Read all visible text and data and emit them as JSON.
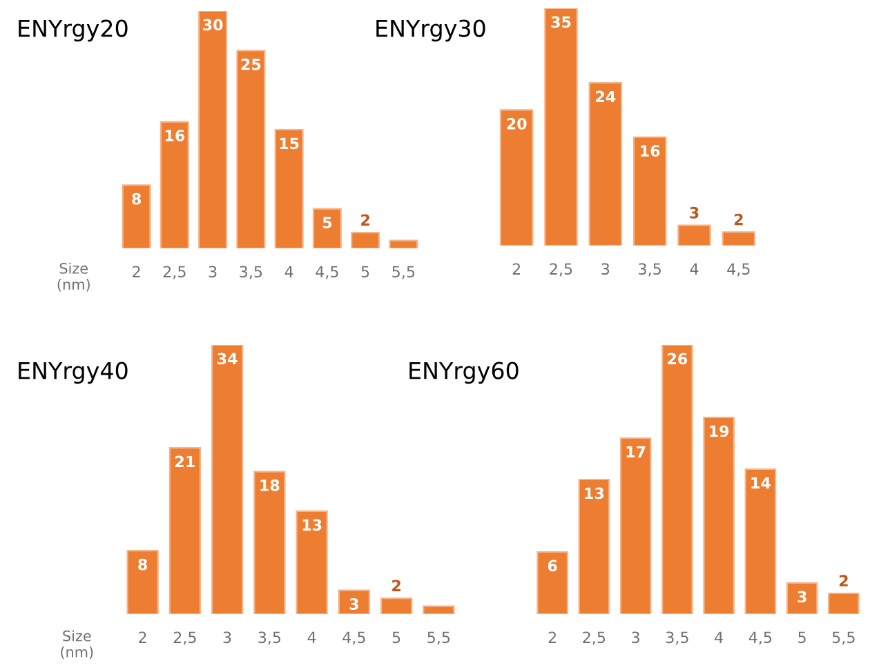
{
  "chart_data": [
    {
      "type": "bar",
      "title": "ENYrgy20",
      "xlabel": "Size\n(nm)",
      "categories": [
        "2",
        "2,5",
        "3",
        "3,5",
        "4",
        "4,5",
        "5",
        "5,5"
      ],
      "color": "#ed7d31",
      "values": [
        8,
        16,
        30,
        25,
        15,
        5,
        2,
        1
      ],
      "value_labels": [
        "8",
        "16",
        "30",
        "25",
        "15",
        "5",
        "2",
        null
      ],
      "grid": false,
      "legend": false
    },
    {
      "type": "bar",
      "title": "ENYrgy30",
      "categories": [
        "2",
        "2,5",
        "3",
        "3,5",
        "4",
        "4,5"
      ],
      "color": "#ed7d31",
      "values": [
        20,
        35,
        24,
        16,
        3,
        2
      ],
      "data_labels": true,
      "grid": false,
      "legend": false
    },
    {
      "type": "bar",
      "title": "ENYrgy40",
      "xlabel": "Size\n(nm)",
      "categories": [
        "2",
        "2,5",
        "3",
        "3,5",
        "4",
        "4,5",
        "5",
        "5,5"
      ],
      "color": "#ed7d31",
      "values": [
        8,
        21,
        34,
        18,
        13,
        3,
        2,
        1
      ],
      "value_labels": [
        "8",
        "21",
        "34",
        "18",
        "13",
        "3",
        "2",
        null
      ],
      "grid": false,
      "legend": false
    },
    {
      "type": "bar",
      "title": "ENYrgy60",
      "categories": [
        "2",
        "2,5",
        "3",
        "3,5",
        "4",
        "4,5",
        "5",
        "5,5"
      ],
      "color": "#ed7d31",
      "values": [
        6,
        13,
        17,
        26,
        19,
        14,
        3,
        2
      ],
      "data_labels": true,
      "grid": false,
      "legend": false
    }
  ]
}
